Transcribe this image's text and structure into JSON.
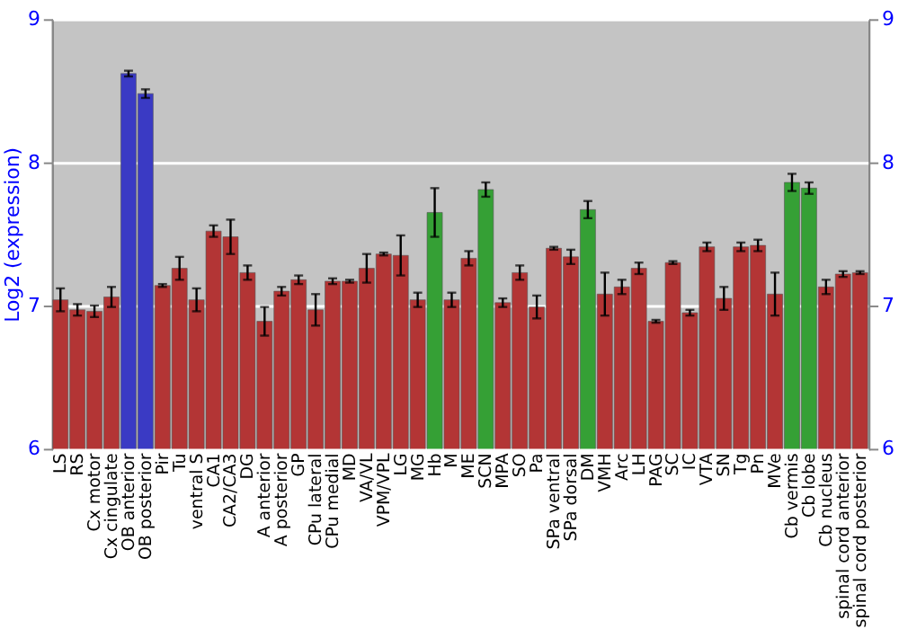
{
  "chart_data": {
    "type": "bar",
    "ylabel": "Log2 (expression)",
    "categories": [
      "LS",
      "RS",
      "Cx motor",
      "Cx cingulate",
      "OB anterior",
      "OB posterior",
      "Pir",
      "Tu",
      "ventral S",
      "CA1",
      "CA2/CA3",
      "DG",
      "A anterior",
      "A posterior",
      "GP",
      "CPu lateral",
      "CPu medial",
      "MD",
      "VA/VL",
      "VPM/VPL",
      "LG",
      "MG",
      "Hb",
      "M",
      "ME",
      "SCN",
      "MPA",
      "SO",
      "Pa",
      "SPa ventral",
      "SPa dorsal",
      "DM",
      "VMH",
      "Arc",
      "LH",
      "PAG",
      "SC",
      "IC",
      "VTA",
      "SN",
      "Tg",
      "Pn",
      "MVe",
      "Cb vermis",
      "Cb lobe",
      "Cb nucleus",
      "spinal cord anterior",
      "spinal cord posterior"
    ],
    "values": [
      7.04,
      6.97,
      6.96,
      7.06,
      8.62,
      8.48,
      7.14,
      7.26,
      7.04,
      7.52,
      7.48,
      7.23,
      6.89,
      7.1,
      7.18,
      6.97,
      7.17,
      7.17,
      7.26,
      7.36,
      7.35,
      7.04,
      7.65,
      7.04,
      7.33,
      7.81,
      7.02,
      7.23,
      6.99,
      7.4,
      7.34,
      7.67,
      7.08,
      7.13,
      7.26,
      6.89,
      7.3,
      6.95,
      7.41,
      7.05,
      7.41,
      7.42,
      7.08,
      7.86,
      7.82,
      7.13,
      7.22,
      7.23
    ],
    "errors": [
      0.08,
      0.04,
      0.04,
      0.07,
      0.02,
      0.03,
      0.01,
      0.08,
      0.08,
      0.04,
      0.12,
      0.05,
      0.1,
      0.03,
      0.03,
      0.11,
      0.02,
      0.01,
      0.1,
      0.01,
      0.14,
      0.05,
      0.17,
      0.05,
      0.05,
      0.05,
      0.03,
      0.05,
      0.08,
      0.01,
      0.05,
      0.06,
      0.15,
      0.05,
      0.04,
      0.01,
      0.01,
      0.02,
      0.03,
      0.08,
      0.03,
      0.04,
      0.15,
      0.06,
      0.04,
      0.05,
      0.02,
      0.01
    ],
    "colors": [
      "#b33535",
      "#b33535",
      "#b33535",
      "#b33535",
      "#3a3ac4",
      "#3a3ac4",
      "#b33535",
      "#b33535",
      "#b33535",
      "#b33535",
      "#b33535",
      "#b33535",
      "#b33535",
      "#b33535",
      "#b33535",
      "#b33535",
      "#b33535",
      "#b33535",
      "#b33535",
      "#b33535",
      "#b33535",
      "#b33535",
      "#35a035",
      "#b33535",
      "#b33535",
      "#35a035",
      "#b33535",
      "#b33535",
      "#b33535",
      "#b33535",
      "#b33535",
      "#35a035",
      "#b33535",
      "#b33535",
      "#b33535",
      "#b33535",
      "#b33535",
      "#b33535",
      "#b33535",
      "#b33535",
      "#b33535",
      "#b33535",
      "#b33535",
      "#35a035",
      "#35a035",
      "#b33535",
      "#b33535",
      "#b33535"
    ],
    "ylim": [
      6,
      9
    ],
    "yticks": [
      6,
      7,
      8,
      9
    ],
    "y2lim": [
      6,
      9
    ],
    "y2ticks": [
      6,
      7,
      8,
      9
    ],
    "grid": "y"
  }
}
